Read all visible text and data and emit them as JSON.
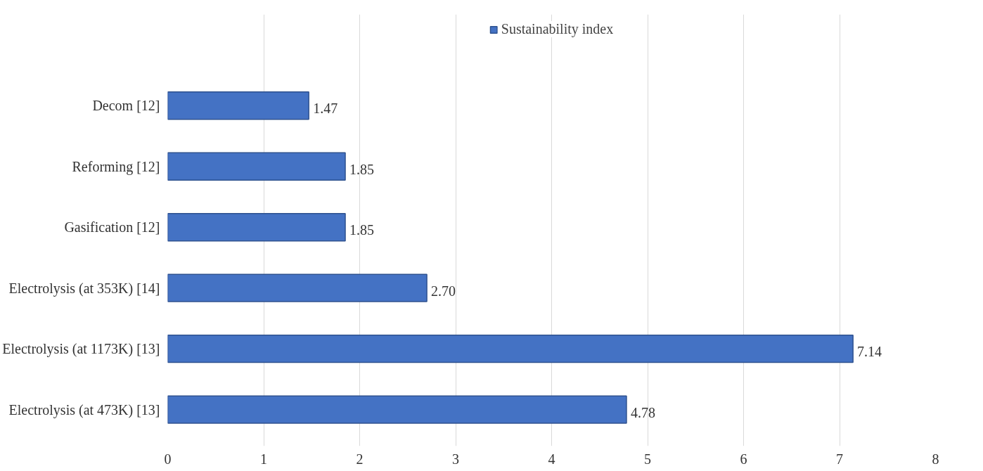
{
  "chart_data": {
    "type": "bar",
    "orientation": "horizontal",
    "categories": [
      "Decom [12]",
      "Reforming [12]",
      "Gasification [12]",
      "Electrolysis (at 353K) [14]",
      "Electrolysis (at 1173K) [13]",
      "Electrolysis (at 473K) [13]"
    ],
    "series": [
      {
        "name": "Sustainability index",
        "color": "#4472c4",
        "values": [
          1.47,
          1.85,
          1.85,
          2.7,
          7.14,
          4.78
        ],
        "value_labels": [
          "1.47",
          "1.85",
          "1.85",
          "2.70",
          "7.14",
          "4.78"
        ]
      }
    ],
    "xlim": [
      0,
      8
    ],
    "xticks": [
      0,
      1,
      2,
      3,
      4,
      5,
      6,
      7,
      8
    ],
    "grid": "x",
    "legend": "top"
  }
}
